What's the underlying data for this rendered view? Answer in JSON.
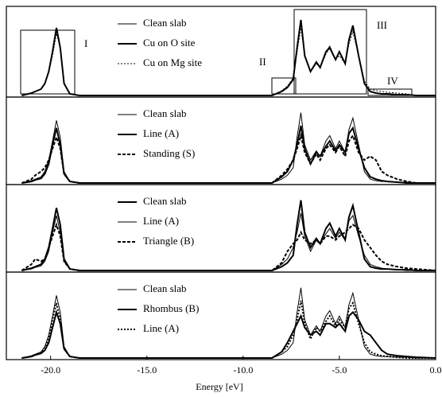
{
  "chart_data": [
    {
      "type": "line",
      "xlim": [
        -22.3,
        0
      ],
      "ylim": [
        0,
        1
      ],
      "annotations": [
        "I",
        "II",
        "III",
        "IV"
      ],
      "x": [
        -21.5,
        -21,
        -20.8,
        -20.5,
        -20.3,
        -20.1,
        -19.9,
        -19.7,
        -19.5,
        -19.3,
        -19,
        -18.5,
        -10,
        -8.5,
        -8,
        -7.7,
        -7.4,
        -7.2,
        -7,
        -6.8,
        -6.5,
        -6.2,
        -6,
        -5.7,
        -5.5,
        -5.2,
        -5,
        -4.7,
        -4.5,
        -4.3,
        -4,
        -3.7,
        -3.4,
        -3.1,
        -2.8,
        -2.5,
        -2,
        -1.5,
        -1,
        0
      ],
      "series": [
        {
          "name": "Clean slab",
          "color": "#000000",
          "linestyle": "solid",
          "linewidth": "thin",
          "values": [
            0,
            0.03,
            0.05,
            0.08,
            0.15,
            0.3,
            0.55,
            0.82,
            0.6,
            0.15,
            0.02,
            0,
            0,
            0,
            0.05,
            0.1,
            0.2,
            0.6,
            0.92,
            0.5,
            0.3,
            0.42,
            0.35,
            0.55,
            0.62,
            0.45,
            0.55,
            0.4,
            0.7,
            0.85,
            0.5,
            0.15,
            0.05,
            0.03,
            0.02,
            0.02,
            0.01,
            0.01,
            0,
            0
          ]
        },
        {
          "name": "Cu on O site",
          "color": "#000000",
          "linestyle": "solid",
          "linewidth": "thick",
          "values": [
            0,
            0.03,
            0.05,
            0.08,
            0.15,
            0.3,
            0.55,
            0.85,
            0.6,
            0.15,
            0.02,
            0,
            0,
            0,
            0.05,
            0.1,
            0.2,
            0.6,
            0.95,
            0.5,
            0.3,
            0.42,
            0.35,
            0.55,
            0.6,
            0.45,
            0.55,
            0.4,
            0.7,
            0.88,
            0.5,
            0.15,
            0.05,
            0.03,
            0.02,
            0.02,
            0.01,
            0.01,
            0,
            0
          ]
        },
        {
          "name": "Cu on Mg site",
          "color": "#000000",
          "linestyle": "dotted",
          "linewidth": "thin",
          "values": [
            0,
            0.03,
            0.05,
            0.08,
            0.15,
            0.3,
            0.5,
            0.78,
            0.6,
            0.15,
            0.02,
            0,
            0,
            0,
            0.06,
            0.12,
            0.22,
            0.55,
            0.85,
            0.5,
            0.3,
            0.4,
            0.35,
            0.52,
            0.6,
            0.45,
            0.5,
            0.4,
            0.65,
            0.8,
            0.5,
            0.18,
            0.08,
            0.06,
            0.05,
            0.04,
            0.03,
            0.02,
            0,
            0
          ]
        }
      ]
    },
    {
      "type": "line",
      "xlim": [
        -22.3,
        0
      ],
      "ylim": [
        0,
        1
      ],
      "x": [
        -21.5,
        -21,
        -20.8,
        -20.5,
        -20.3,
        -20.1,
        -19.9,
        -19.7,
        -19.5,
        -19.3,
        -19,
        -18.5,
        -10,
        -8.5,
        -8,
        -7.7,
        -7.4,
        -7.2,
        -7,
        -6.8,
        -6.5,
        -6.2,
        -6,
        -5.7,
        -5.5,
        -5.2,
        -5,
        -4.7,
        -4.5,
        -4.3,
        -4,
        -3.7,
        -3.4,
        -3.1,
        -2.8,
        -2.5,
        -2,
        -1.5,
        -1,
        0
      ],
      "series": [
        {
          "name": "Clean slab",
          "color": "#000000",
          "linestyle": "solid",
          "linewidth": "thin",
          "values": [
            0,
            0.03,
            0.05,
            0.08,
            0.15,
            0.3,
            0.55,
            0.82,
            0.6,
            0.15,
            0.02,
            0,
            0,
            0,
            0.05,
            0.1,
            0.2,
            0.6,
            0.92,
            0.5,
            0.3,
            0.42,
            0.35,
            0.55,
            0.62,
            0.45,
            0.55,
            0.4,
            0.7,
            0.85,
            0.5,
            0.15,
            0.05,
            0.03,
            0.02,
            0.02,
            0.01,
            0.01,
            0,
            0
          ]
        },
        {
          "name": "Line (A)",
          "color": "#000000",
          "linestyle": "solid",
          "linewidth": "thick",
          "values": [
            0,
            0.02,
            0.04,
            0.06,
            0.12,
            0.25,
            0.5,
            0.72,
            0.5,
            0.12,
            0.02,
            0,
            0,
            0,
            0.08,
            0.15,
            0.3,
            0.5,
            0.75,
            0.45,
            0.25,
            0.4,
            0.35,
            0.48,
            0.55,
            0.42,
            0.5,
            0.4,
            0.65,
            0.72,
            0.45,
            0.2,
            0.08,
            0.05,
            0.03,
            0.02,
            0.01,
            0,
            0,
            0
          ]
        },
        {
          "name": "Standing (S)",
          "color": "#000000",
          "linestyle": "dashed",
          "linewidth": "thick",
          "values": [
            0,
            0.05,
            0.1,
            0.15,
            0.2,
            0.3,
            0.45,
            0.6,
            0.45,
            0.12,
            0.02,
            0,
            0,
            0,
            0.1,
            0.18,
            0.3,
            0.45,
            0.62,
            0.4,
            0.25,
            0.38,
            0.3,
            0.45,
            0.5,
            0.4,
            0.48,
            0.35,
            0.55,
            0.62,
            0.4,
            0.3,
            0.35,
            0.3,
            0.15,
            0.1,
            0.05,
            0.02,
            0,
            0
          ]
        }
      ]
    },
    {
      "type": "line",
      "xlim": [
        -22.3,
        0
      ],
      "ylim": [
        0,
        1
      ],
      "x": [
        -21.5,
        -21,
        -20.8,
        -20.5,
        -20.3,
        -20.1,
        -19.9,
        -19.7,
        -19.5,
        -19.3,
        -19,
        -18.5,
        -10,
        -8.5,
        -8,
        -7.7,
        -7.4,
        -7.2,
        -7,
        -6.8,
        -6.5,
        -6.2,
        -6,
        -5.7,
        -5.5,
        -5.2,
        -5,
        -4.7,
        -4.5,
        -4.3,
        -4,
        -3.7,
        -3.4,
        -3.1,
        -2.8,
        -2.5,
        -2,
        -1.5,
        -1,
        0
      ],
      "series": [
        {
          "name": "Clean slab",
          "color": "#000000",
          "linestyle": "solid",
          "linewidth": "thick",
          "values": [
            0,
            0.03,
            0.05,
            0.08,
            0.15,
            0.3,
            0.55,
            0.82,
            0.6,
            0.15,
            0.02,
            0,
            0,
            0,
            0.05,
            0.1,
            0.2,
            0.6,
            0.92,
            0.5,
            0.3,
            0.42,
            0.35,
            0.55,
            0.62,
            0.45,
            0.55,
            0.4,
            0.7,
            0.85,
            0.5,
            0.15,
            0.05,
            0.03,
            0.02,
            0.02,
            0.01,
            0.01,
            0,
            0
          ]
        },
        {
          "name": "Line (A)",
          "color": "#000000",
          "linestyle": "solid",
          "linewidth": "thin",
          "values": [
            0,
            0.02,
            0.04,
            0.06,
            0.12,
            0.25,
            0.5,
            0.72,
            0.5,
            0.12,
            0.02,
            0,
            0,
            0,
            0.08,
            0.15,
            0.3,
            0.5,
            0.75,
            0.45,
            0.25,
            0.4,
            0.35,
            0.48,
            0.55,
            0.42,
            0.5,
            0.4,
            0.65,
            0.72,
            0.45,
            0.2,
            0.08,
            0.05,
            0.03,
            0.02,
            0.01,
            0,
            0,
            0
          ]
        },
        {
          "name": "Triangle (B)",
          "color": "#000000",
          "linestyle": "dashed",
          "linewidth": "thick",
          "values": [
            0,
            0.08,
            0.15,
            0.12,
            0.15,
            0.3,
            0.45,
            0.6,
            0.45,
            0.12,
            0.02,
            0,
            0,
            0,
            0.1,
            0.25,
            0.35,
            0.4,
            0.5,
            0.4,
            0.35,
            0.4,
            0.35,
            0.45,
            0.45,
            0.4,
            0.45,
            0.5,
            0.55,
            0.6,
            0.55,
            0.4,
            0.3,
            0.2,
            0.12,
            0.08,
            0.05,
            0.03,
            0.02,
            0
          ]
        }
      ]
    },
    {
      "type": "line",
      "xlim": [
        -22.3,
        0
      ],
      "ylim": [
        0,
        1
      ],
      "xlabel": "Energy [eV]",
      "xticks": [
        {
          "value": -20,
          "label": "-20.0"
        },
        {
          "value": -15,
          "label": "-15.0"
        },
        {
          "value": -10,
          "label": "-10.0"
        },
        {
          "value": -5,
          "label": "-5.0"
        },
        {
          "value": 0,
          "label": "0.0"
        }
      ],
      "x": [
        -21.5,
        -21,
        -20.8,
        -20.5,
        -20.3,
        -20.1,
        -19.9,
        -19.7,
        -19.5,
        -19.3,
        -19,
        -18.5,
        -10,
        -8.5,
        -8,
        -7.7,
        -7.4,
        -7.2,
        -7,
        -6.8,
        -6.5,
        -6.2,
        -6,
        -5.7,
        -5.5,
        -5.2,
        -5,
        -4.7,
        -4.5,
        -4.3,
        -4,
        -3.7,
        -3.4,
        -3.1,
        -2.8,
        -2.5,
        -2,
        -1.5,
        -1,
        0
      ],
      "series": [
        {
          "name": "Clean slab",
          "color": "#000000",
          "linestyle": "solid",
          "linewidth": "thin",
          "values": [
            0,
            0.03,
            0.05,
            0.08,
            0.15,
            0.3,
            0.55,
            0.82,
            0.6,
            0.15,
            0.02,
            0,
            0,
            0,
            0.05,
            0.1,
            0.2,
            0.6,
            0.92,
            0.5,
            0.3,
            0.42,
            0.35,
            0.55,
            0.62,
            0.45,
            0.55,
            0.4,
            0.7,
            0.85,
            0.5,
            0.15,
            0.05,
            0.03,
            0.02,
            0.02,
            0.01,
            0.01,
            0,
            0
          ]
        },
        {
          "name": "Rhombus (B)",
          "color": "#000000",
          "linestyle": "solid",
          "linewidth": "thick",
          "values": [
            0,
            0.02,
            0.04,
            0.06,
            0.1,
            0.2,
            0.4,
            0.6,
            0.45,
            0.12,
            0.02,
            0,
            0,
            0,
            0.08,
            0.2,
            0.35,
            0.45,
            0.55,
            0.4,
            0.3,
            0.35,
            0.3,
            0.45,
            0.45,
            0.4,
            0.45,
            0.35,
            0.55,
            0.6,
            0.5,
            0.35,
            0.3,
            0.2,
            0.1,
            0.05,
            0.03,
            0.02,
            0.01,
            0
          ]
        },
        {
          "name": "Line (A)",
          "color": "#000000",
          "linestyle": "dotted",
          "linewidth": "thick",
          "values": [
            0,
            0.02,
            0.04,
            0.06,
            0.12,
            0.25,
            0.5,
            0.72,
            0.5,
            0.12,
            0.02,
            0,
            0,
            0,
            0.08,
            0.15,
            0.3,
            0.5,
            0.75,
            0.45,
            0.25,
            0.4,
            0.35,
            0.48,
            0.55,
            0.42,
            0.5,
            0.4,
            0.65,
            0.72,
            0.45,
            0.2,
            0.08,
            0.05,
            0.03,
            0.02,
            0.01,
            0,
            0,
            0
          ]
        }
      ]
    }
  ]
}
